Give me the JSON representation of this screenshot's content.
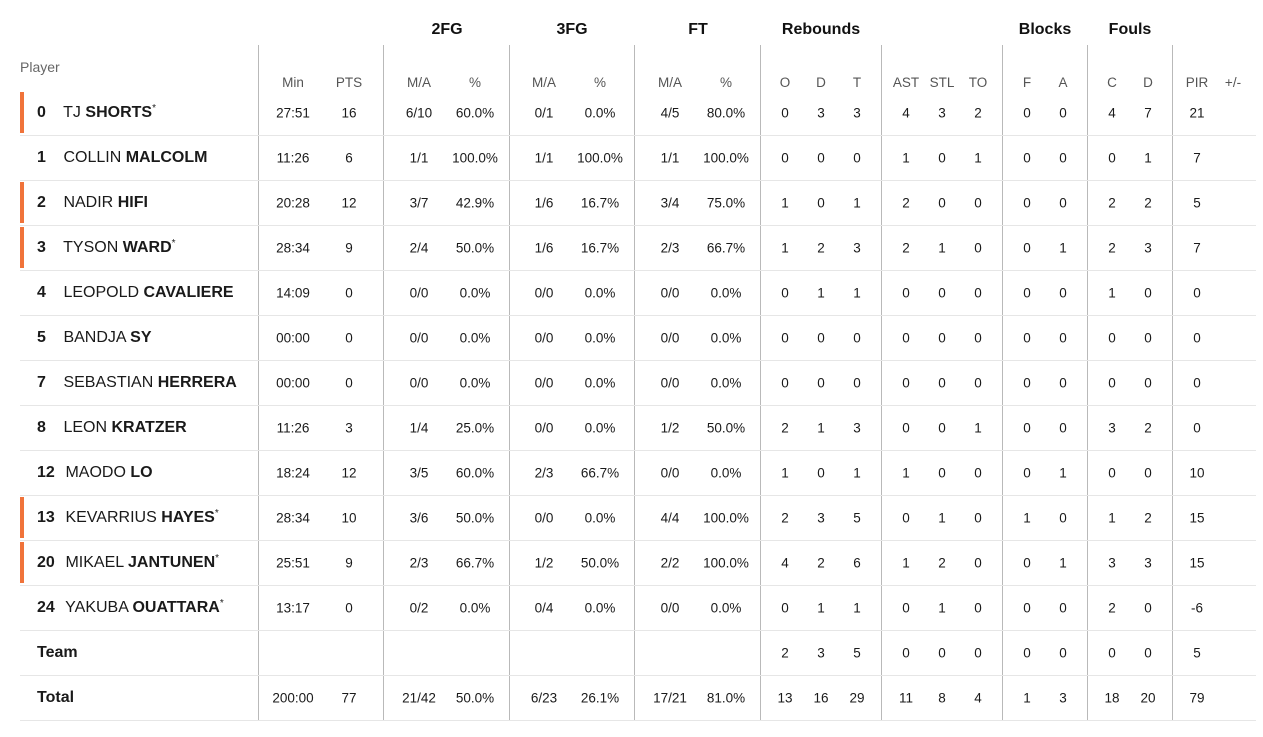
{
  "headers": {
    "player": "Player",
    "groups": {
      "fg2": "2FG",
      "fg3": "3FG",
      "ft": "FT",
      "rebounds": "Rebounds",
      "blocks": "Blocks",
      "fouls": "Fouls"
    },
    "columns": [
      "Min",
      "PTS",
      "M/A",
      "%",
      "M/A",
      "%",
      "M/A",
      "%",
      "O",
      "D",
      "T",
      "AST",
      "STL",
      "TO",
      "F",
      "A",
      "C",
      "D",
      "PIR",
      "+/-"
    ]
  },
  "colors": {
    "starter_accent": "#f0733a",
    "divider": "#b9b9b9",
    "row_line": "#e6e6e6"
  },
  "players": [
    {
      "num": "0",
      "first": "TJ",
      "last": "SHORTS",
      "star": "*",
      "starter": true,
      "stats": [
        "27:51",
        "16",
        "6/10",
        "60.0%",
        "0/1",
        "0.0%",
        "4/5",
        "80.0%",
        "0",
        "3",
        "3",
        "4",
        "3",
        "2",
        "0",
        "0",
        "4",
        "7",
        "21",
        ""
      ]
    },
    {
      "num": "1",
      "first": "COLLIN",
      "last": "MALCOLM",
      "star": "",
      "starter": false,
      "stats": [
        "11:26",
        "6",
        "1/1",
        "100.0%",
        "1/1",
        "100.0%",
        "1/1",
        "100.0%",
        "0",
        "0",
        "0",
        "1",
        "0",
        "1",
        "0",
        "0",
        "0",
        "1",
        "7",
        ""
      ]
    },
    {
      "num": "2",
      "first": "NADIR",
      "last": "HIFI",
      "star": "",
      "starter": true,
      "stats": [
        "20:28",
        "12",
        "3/7",
        "42.9%",
        "1/6",
        "16.7%",
        "3/4",
        "75.0%",
        "1",
        "0",
        "1",
        "2",
        "0",
        "0",
        "0",
        "0",
        "2",
        "2",
        "5",
        ""
      ]
    },
    {
      "num": "3",
      "first": "TYSON",
      "last": "WARD",
      "star": "*",
      "starter": true,
      "stats": [
        "28:34",
        "9",
        "2/4",
        "50.0%",
        "1/6",
        "16.7%",
        "2/3",
        "66.7%",
        "1",
        "2",
        "3",
        "2",
        "1",
        "0",
        "0",
        "1",
        "2",
        "3",
        "7",
        ""
      ]
    },
    {
      "num": "4",
      "first": "LEOPOLD",
      "last": "CAVALIERE",
      "star": "",
      "starter": false,
      "stats": [
        "14:09",
        "0",
        "0/0",
        "0.0%",
        "0/0",
        "0.0%",
        "0/0",
        "0.0%",
        "0",
        "1",
        "1",
        "0",
        "0",
        "0",
        "0",
        "0",
        "1",
        "0",
        "0",
        ""
      ]
    },
    {
      "num": "5",
      "first": "BANDJA",
      "last": "SY",
      "star": "",
      "starter": false,
      "stats": [
        "00:00",
        "0",
        "0/0",
        "0.0%",
        "0/0",
        "0.0%",
        "0/0",
        "0.0%",
        "0",
        "0",
        "0",
        "0",
        "0",
        "0",
        "0",
        "0",
        "0",
        "0",
        "0",
        ""
      ]
    },
    {
      "num": "7",
      "first": "SEBASTIAN",
      "last": "HERRERA",
      "star": "",
      "starter": false,
      "stats": [
        "00:00",
        "0",
        "0/0",
        "0.0%",
        "0/0",
        "0.0%",
        "0/0",
        "0.0%",
        "0",
        "0",
        "0",
        "0",
        "0",
        "0",
        "0",
        "0",
        "0",
        "0",
        "0",
        ""
      ]
    },
    {
      "num": "8",
      "first": "LEON",
      "last": "KRATZER",
      "star": "",
      "starter": false,
      "stats": [
        "11:26",
        "3",
        "1/4",
        "25.0%",
        "0/0",
        "0.0%",
        "1/2",
        "50.0%",
        "2",
        "1",
        "3",
        "0",
        "0",
        "1",
        "0",
        "0",
        "3",
        "2",
        "0",
        ""
      ]
    },
    {
      "num": "12",
      "first": "MAODO",
      "last": "LO",
      "star": "",
      "starter": false,
      "stats": [
        "18:24",
        "12",
        "3/5",
        "60.0%",
        "2/3",
        "66.7%",
        "0/0",
        "0.0%",
        "1",
        "0",
        "1",
        "1",
        "0",
        "0",
        "0",
        "1",
        "0",
        "0",
        "10",
        ""
      ]
    },
    {
      "num": "13",
      "first": "KEVARRIUS",
      "last": "HAYES",
      "star": "*",
      "starter": true,
      "stats": [
        "28:34",
        "10",
        "3/6",
        "50.0%",
        "0/0",
        "0.0%",
        "4/4",
        "100.0%",
        "2",
        "3",
        "5",
        "0",
        "1",
        "0",
        "1",
        "0",
        "1",
        "2",
        "15",
        ""
      ]
    },
    {
      "num": "20",
      "first": "MIKAEL",
      "last": "JANTUNEN",
      "star": "*",
      "starter": true,
      "stats": [
        "25:51",
        "9",
        "2/3",
        "66.7%",
        "1/2",
        "50.0%",
        "2/2",
        "100.0%",
        "4",
        "2",
        "6",
        "1",
        "2",
        "0",
        "0",
        "1",
        "3",
        "3",
        "15",
        ""
      ]
    },
    {
      "num": "24",
      "first": "YAKUBA",
      "last": "OUATTARA",
      "star": "*",
      "starter": false,
      "stats": [
        "13:17",
        "0",
        "0/2",
        "0.0%",
        "0/4",
        "0.0%",
        "0/0",
        "0.0%",
        "0",
        "1",
        "1",
        "0",
        "1",
        "0",
        "0",
        "0",
        "2",
        "0",
        "-6",
        ""
      ]
    }
  ],
  "team": {
    "label": "Team",
    "stats": [
      "",
      "",
      "",
      "",
      "",
      "",
      "",
      "",
      "2",
      "3",
      "5",
      "0",
      "0",
      "0",
      "0",
      "0",
      "0",
      "0",
      "5",
      ""
    ]
  },
  "total": {
    "label": "Total",
    "stats": [
      "200:00",
      "77",
      "21/42",
      "50.0%",
      "6/23",
      "26.1%",
      "17/21",
      "81.0%",
      "13",
      "16",
      "29",
      "11",
      "8",
      "4",
      "1",
      "3",
      "18",
      "20",
      "79",
      ""
    ]
  }
}
